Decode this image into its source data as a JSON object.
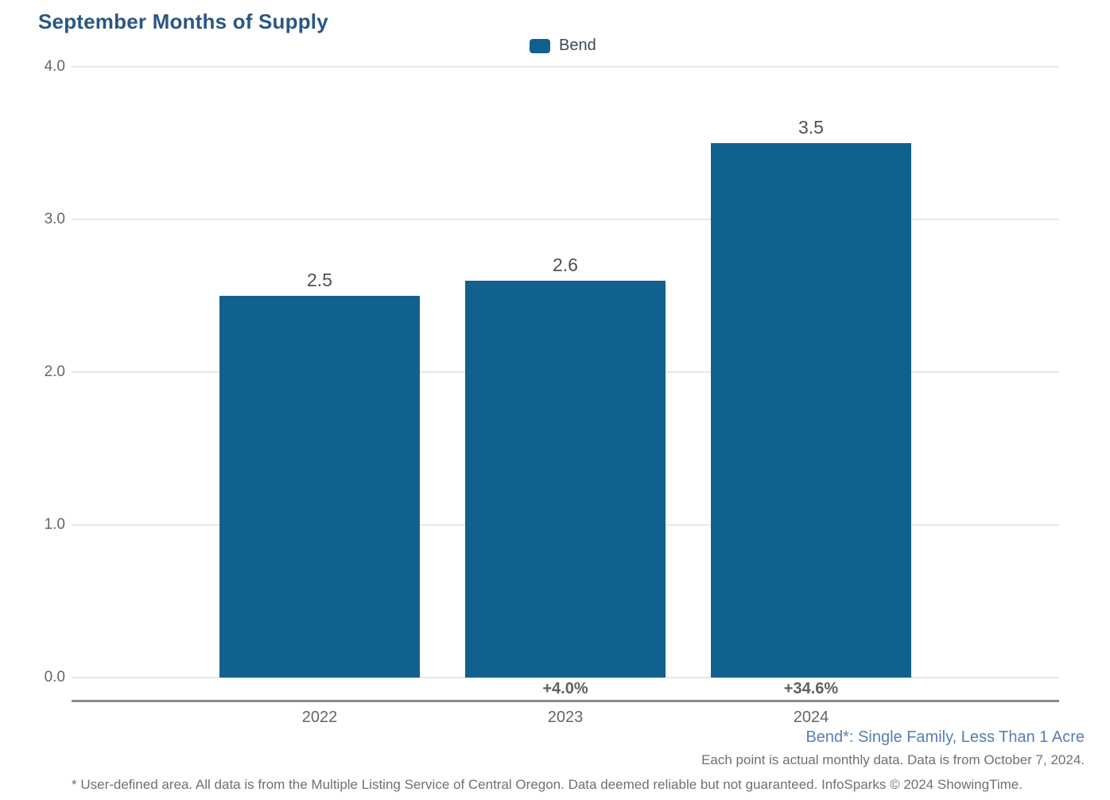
{
  "title": "September Months of Supply",
  "legend": {
    "label": "Bend",
    "color": "#11618F"
  },
  "chart_data": {
    "type": "bar",
    "title": "September Months of Supply",
    "series_name": "Bend",
    "categories": [
      "2022",
      "2023",
      "2024"
    ],
    "values": [
      2.5,
      2.6,
      3.5
    ],
    "value_labels": [
      "2.5",
      "2.6",
      "3.5"
    ],
    "pct_change_labels": [
      "",
      "+4.0%",
      "+34.6%"
    ],
    "xlabel": "",
    "ylabel": "",
    "ylim": [
      0.0,
      4.0
    ],
    "yticks_top_to_bottom": [
      "4.0",
      "3.0",
      "2.0",
      "1.0",
      "0.0"
    ],
    "grid": true,
    "legend_position": "top-center",
    "bar_color": "#11618F"
  },
  "footer": {
    "series_note": "Bend*: Single Family, Less Than 1 Acre",
    "data_note": "Each point is actual monthly data. Data is from October 7, 2024.",
    "disclaimer": "* User-defined area. All data is from the Multiple Listing Service of Central Oregon. Data deemed reliable but not guaranteed. InfoSparks © 2024 ShowingTime."
  },
  "colors": {
    "title_text": "#2A5783",
    "bar": "#11618F",
    "series_note_text": "#5580B3",
    "axis_text": "#666666",
    "value_label_text": "#4F4F4F",
    "pct_label_text": "#606060",
    "gridline": "#E7E7E7",
    "axis_line": "#8A8A8A",
    "legend_text": "#3D4A58",
    "footnote_text": "#707070"
  }
}
